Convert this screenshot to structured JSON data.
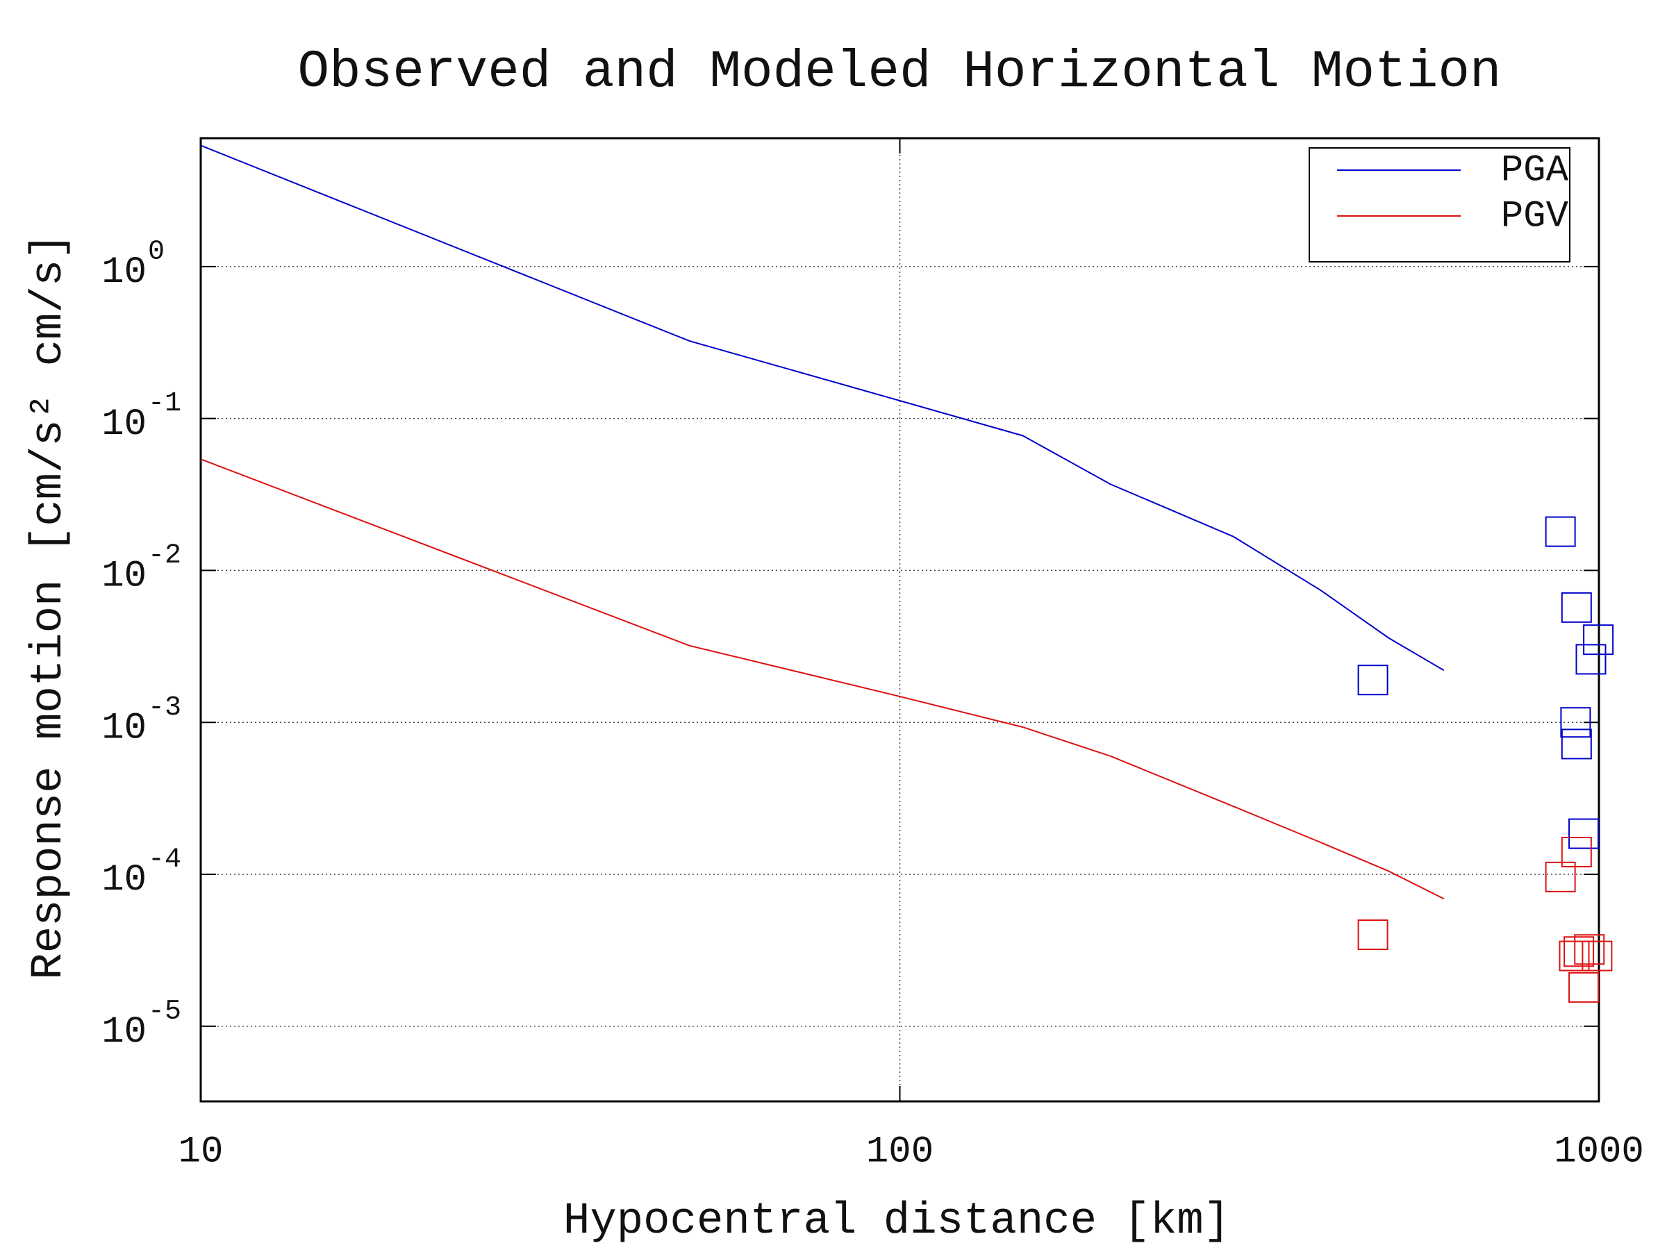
{
  "chart_data": {
    "type": "line",
    "title": "Observed and Modeled Horizontal Motion",
    "xlabel": "Hypocentral distance [km]",
    "ylabel": "Response motion [cm/s² cm/s]",
    "xscale": "log",
    "yscale": "log",
    "xlim": [
      10,
      1000
    ],
    "xticks": [
      10,
      100,
      1000
    ],
    "ylim": [
      3.2e-06,
      7
    ],
    "yticks": [
      {
        "value": 1e-05,
        "label": "10",
        "exponent": "-5"
      },
      {
        "value": 0.0001,
        "label": "10",
        "exponent": "-4"
      },
      {
        "value": 0.001,
        "label": "10",
        "exponent": "-3"
      },
      {
        "value": 0.01,
        "label": "10",
        "exponent": "-2"
      },
      {
        "value": 0.1,
        "label": "10",
        "exponent": "-1"
      },
      {
        "value": 1,
        "label": "10",
        "exponent": "0"
      }
    ],
    "grid": true,
    "legend": "upper right",
    "series": [
      {
        "name": "PGA",
        "color": "#0000cc",
        "x": [
          10,
          50,
          100,
          150,
          200,
          300,
          400,
          500,
          600
        ],
        "values": [
          6.27,
          0.324,
          0.131,
          0.077,
          0.037,
          0.0167,
          0.0074,
          0.0036,
          0.0022
        ],
        "observed_x": [
          475,
          881,
          929,
          998,
          974,
          926,
          929,
          951
        ],
        "observed_values": [
          0.0019,
          0.018,
          0.0057,
          0.0035,
          0.0026,
          0.001,
          0.00072,
          0.000185
        ]
      },
      {
        "name": "PGV",
        "color": "#dd1111",
        "x": [
          10,
          50,
          100,
          150,
          200,
          300,
          400,
          500,
          600
        ],
        "values": [
          0.054,
          0.0032,
          0.00148,
          0.00093,
          0.0006,
          0.00028,
          0.000162,
          0.000105,
          6.9e-05
        ],
        "observed_x": [
          475,
          881,
          929,
          922,
          936,
          969,
          994,
          951
        ],
        "observed_values": [
          4e-05,
          9.6e-05,
          0.00014,
          2.9e-05,
          3.1e-05,
          3.2e-05,
          2.9e-05,
          1.8e-05
        ]
      }
    ]
  }
}
